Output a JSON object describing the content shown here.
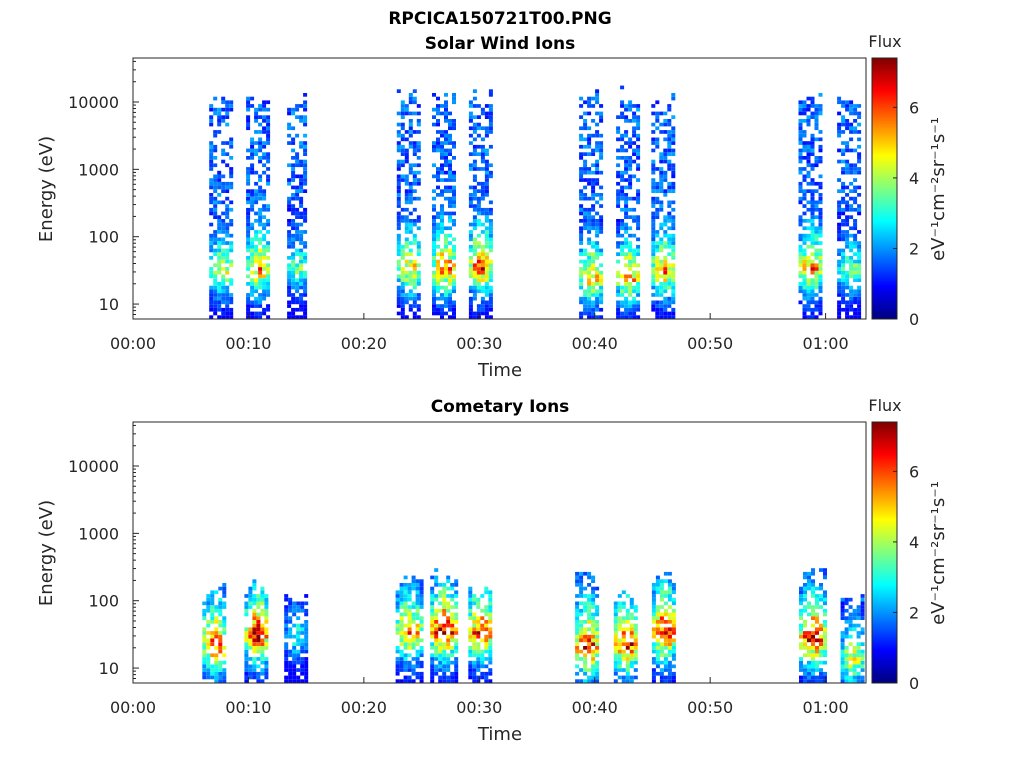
{
  "figure": {
    "title": "RPCICA150721T00.PNG",
    "colorbar_stops": [
      "#00007f",
      "#0000ff",
      "#007fff",
      "#00ffff",
      "#7fff7f",
      "#ffff00",
      "#ff7f00",
      "#ff0000",
      "#7f0000"
    ]
  },
  "chart_data": [
    {
      "type": "heatmap",
      "title": "Solar Wind Ions",
      "xlabel": "Time",
      "ylabel": "Energy (eV)",
      "x_ticks": [
        "00:00",
        "00:10",
        "00:20",
        "00:30",
        "00:40",
        "00:50",
        "01:00"
      ],
      "x_tick_minutes": [
        0,
        10,
        20,
        30,
        40,
        50,
        60
      ],
      "xlim_minutes": [
        0,
        63.5
      ],
      "y_scale": "log",
      "y_ticks": [
        "10",
        "100",
        "1000",
        "10000"
      ],
      "y_tick_values": [
        10,
        100,
        1000,
        10000
      ],
      "ylim": [
        6,
        45000
      ],
      "colorbar": {
        "label": "Flux",
        "unit": "eV⁻¹cm⁻²sr⁻¹s⁻¹",
        "ticks": [
          "0",
          "2",
          "4",
          "6"
        ],
        "tick_values": [
          0,
          2,
          4,
          6
        ],
        "range": [
          0,
          7.4
        ]
      },
      "bursts": [
        {
          "center_min": 7.6,
          "width_min": 2.0,
          "e_min": 6,
          "e_max": 14000,
          "peak_e": 28,
          "peak_flux": 4.8
        },
        {
          "center_min": 10.8,
          "width_min": 2.0,
          "e_min": 6,
          "e_max": 13000,
          "peak_e": 30,
          "peak_flux": 5.6
        },
        {
          "center_min": 14.2,
          "width_min": 1.7,
          "e_min": 6,
          "e_max": 14000,
          "peak_e": 30,
          "peak_flux": 3.8
        },
        {
          "center_min": 23.8,
          "width_min": 1.9,
          "e_min": 6,
          "e_max": 15000,
          "peak_e": 30,
          "peak_flux": 5.2
        },
        {
          "center_min": 26.9,
          "width_min": 2.0,
          "e_min": 6,
          "e_max": 15000,
          "peak_e": 30,
          "peak_flux": 6.0
        },
        {
          "center_min": 30.0,
          "width_min": 1.8,
          "e_min": 6,
          "e_max": 15000,
          "peak_e": 32,
          "peak_flux": 6.2
        },
        {
          "center_min": 39.6,
          "width_min": 1.9,
          "e_min": 6,
          "e_max": 15000,
          "peak_e": 22,
          "peak_flux": 5.4
        },
        {
          "center_min": 42.8,
          "width_min": 1.9,
          "e_min": 6,
          "e_max": 16000,
          "peak_e": 22,
          "peak_flux": 5.6
        },
        {
          "center_min": 45.9,
          "width_min": 2.0,
          "e_min": 6,
          "e_max": 15000,
          "peak_e": 28,
          "peak_flux": 5.6
        },
        {
          "center_min": 58.6,
          "width_min": 1.9,
          "e_min": 6,
          "e_max": 15000,
          "peak_e": 30,
          "peak_flux": 5.8
        },
        {
          "center_min": 62.0,
          "width_min": 2.0,
          "e_min": 6,
          "e_max": 15000,
          "peak_e": 28,
          "peak_flux": 4.0
        }
      ]
    },
    {
      "type": "heatmap",
      "title": "Cometary Ions",
      "xlabel": "Time",
      "ylabel": "Energy (eV)",
      "x_ticks": [
        "00:00",
        "00:10",
        "00:20",
        "00:30",
        "00:40",
        "00:50",
        "01:00"
      ],
      "x_tick_minutes": [
        0,
        10,
        20,
        30,
        40,
        50,
        60
      ],
      "xlim_minutes": [
        0,
        63.5
      ],
      "y_scale": "log",
      "y_ticks": [
        "10",
        "100",
        "1000",
        "10000"
      ],
      "y_tick_values": [
        10,
        100,
        1000,
        10000
      ],
      "ylim": [
        6,
        45000
      ],
      "colorbar": {
        "label": "Flux",
        "unit": "eV⁻¹cm⁻²sr⁻¹s⁻¹",
        "ticks": [
          "0",
          "2",
          "4",
          "6"
        ],
        "tick_values": [
          0,
          2,
          4,
          6
        ],
        "range": [
          0,
          7.4
        ]
      },
      "bursts": [
        {
          "center_min": 7.0,
          "width_min": 2.0,
          "e_min": 6,
          "e_max": 200,
          "peak_e": 20,
          "peak_flux": 6.4
        },
        {
          "center_min": 10.6,
          "width_min": 1.9,
          "e_min": 6,
          "e_max": 200,
          "peak_e": 28,
          "peak_flux": 7.0
        },
        {
          "center_min": 14.0,
          "width_min": 1.8,
          "e_min": 6,
          "e_max": 120,
          "peak_e": 25,
          "peak_flux": 3.2
        },
        {
          "center_min": 23.8,
          "width_min": 2.1,
          "e_min": 6,
          "e_max": 250,
          "peak_e": 30,
          "peak_flux": 6.0
        },
        {
          "center_min": 26.8,
          "width_min": 2.1,
          "e_min": 6,
          "e_max": 280,
          "peak_e": 32,
          "peak_flux": 7.2
        },
        {
          "center_min": 30.0,
          "width_min": 1.9,
          "e_min": 6,
          "e_max": 180,
          "peak_e": 30,
          "peak_flux": 6.8
        },
        {
          "center_min": 39.2,
          "width_min": 1.8,
          "e_min": 6,
          "e_max": 300,
          "peak_e": 18,
          "peak_flux": 7.0
        },
        {
          "center_min": 42.6,
          "width_min": 1.9,
          "e_min": 6,
          "e_max": 150,
          "peak_e": 20,
          "peak_flux": 6.8
        },
        {
          "center_min": 45.9,
          "width_min": 1.9,
          "e_min": 6,
          "e_max": 300,
          "peak_e": 30,
          "peak_flux": 7.2
        },
        {
          "center_min": 58.8,
          "width_min": 2.2,
          "e_min": 6,
          "e_max": 300,
          "peak_e": 25,
          "peak_flux": 7.0
        },
        {
          "center_min": 62.2,
          "width_min": 1.8,
          "e_min": 6,
          "e_max": 150,
          "peak_e": 12,
          "peak_flux": 4.8
        }
      ]
    }
  ]
}
